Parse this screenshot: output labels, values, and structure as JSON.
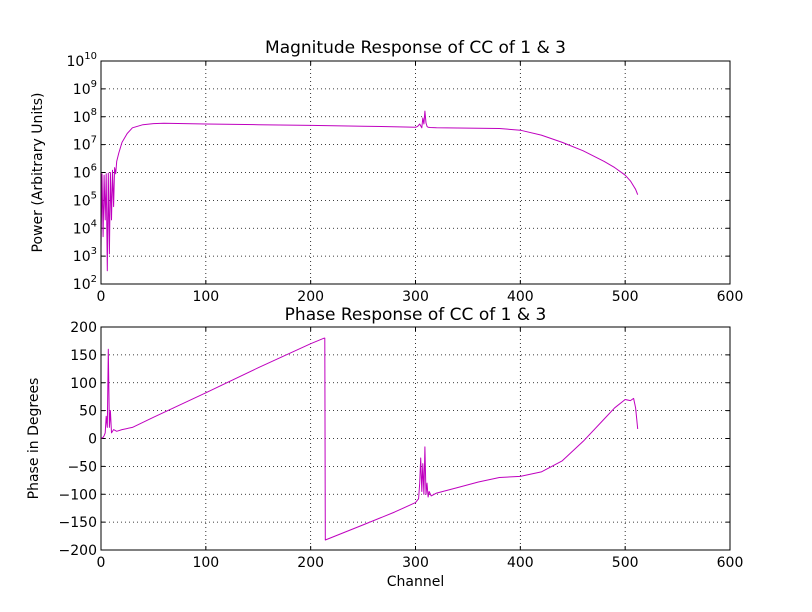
{
  "chart_data": [
    {
      "type": "line",
      "title": "Magnitude Response of CC of 1 & 3",
      "xlabel": "",
      "ylabel": "Power (Arbitrary Units)",
      "xlim": [
        0,
        600
      ],
      "ylim": [
        100,
        10000000000
      ],
      "yscale": "log",
      "grid": true,
      "x_ticks": [
        "0",
        "100",
        "200",
        "300",
        "400",
        "500",
        "600"
      ],
      "y_ticks": [
        {
          "base": "10",
          "exp": "2"
        },
        {
          "base": "10",
          "exp": "3"
        },
        {
          "base": "10",
          "exp": "4"
        },
        {
          "base": "10",
          "exp": "5"
        },
        {
          "base": "10",
          "exp": "6"
        },
        {
          "base": "10",
          "exp": "7"
        },
        {
          "base": "10",
          "exp": "8"
        },
        {
          "base": "10",
          "exp": "9"
        },
        {
          "base": "10",
          "exp": "10"
        }
      ],
      "series": [
        {
          "color": "#bf00bf",
          "x": [
            0,
            1,
            2,
            3,
            4,
            5,
            6,
            7,
            8,
            9,
            10,
            11,
            12,
            13,
            14,
            15,
            17,
            20,
            25,
            30,
            40,
            50,
            60,
            80,
            100,
            150,
            200,
            250,
            290,
            300,
            302,
            304,
            306,
            307,
            308,
            309,
            310,
            311,
            312,
            314,
            320,
            350,
            380,
            400,
            420,
            440,
            460,
            480,
            490,
            500,
            505,
            510,
            512
          ],
          "y": [
            2000,
            900000,
            5000,
            800000,
            20000,
            900000,
            300,
            950000,
            1200,
            1000000,
            20000,
            1200000,
            60000,
            1500000,
            900000,
            2500000,
            5000000,
            12000000,
            25000000,
            40000000,
            52000000,
            57000000,
            58000000,
            57000000,
            55000000,
            52000000,
            49000000,
            46000000,
            43000000,
            42000000,
            45000000,
            55000000,
            40000000,
            90000000,
            55000000,
            160000000,
            60000000,
            45000000,
            42000000,
            41000000,
            40000000,
            39000000,
            38000000,
            33000000,
            22000000,
            12000000,
            6000000,
            2500000,
            1500000,
            800000,
            500000,
            250000,
            160000
          ]
        }
      ]
    },
    {
      "type": "line",
      "title": "Phase Response of CC of 1 & 3",
      "xlabel": "Channel",
      "ylabel": "Phase in Degrees",
      "xlim": [
        0,
        600
      ],
      "ylim": [
        -200,
        200
      ],
      "grid": true,
      "x_ticks": [
        "0",
        "100",
        "200",
        "300",
        "400",
        "500",
        "600"
      ],
      "y_ticks": [
        "−200",
        "−150",
        "−100",
        "−50",
        "0",
        "50",
        "100",
        "150",
        "200"
      ],
      "series": [
        {
          "color": "#bf00bf",
          "x": [
            0,
            2,
            3,
            4,
            5,
            6,
            7,
            8,
            9,
            10,
            12,
            15,
            20,
            30,
            50,
            100,
            150,
            200,
            213,
            213.5,
            214,
            250,
            280,
            300,
            303,
            304,
            305,
            306,
            307,
            308,
            309,
            310,
            311,
            312,
            313,
            315,
            320,
            340,
            360,
            380,
            400,
            420,
            440,
            460,
            480,
            490,
            500,
            505,
            508,
            510,
            512
          ],
          "y": [
            0,
            2,
            5,
            10,
            40,
            20,
            160,
            20,
            50,
            10,
            16,
            13,
            16,
            20,
            38,
            82,
            127,
            170,
            180,
            180,
            -182,
            -155,
            -132,
            -115,
            -108,
            -80,
            -35,
            -95,
            -45,
            -100,
            -15,
            -100,
            -80,
            -105,
            -95,
            -103,
            -98,
            -88,
            -78,
            -70,
            -68,
            -60,
            -40,
            -5,
            35,
            55,
            70,
            68,
            72,
            55,
            17
          ]
        }
      ]
    }
  ]
}
